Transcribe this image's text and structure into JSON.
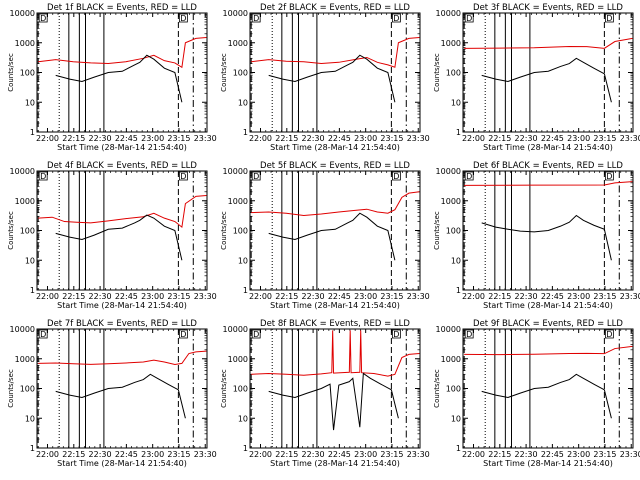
{
  "colors": {
    "events": "#000000",
    "lld": "#e00000",
    "background": "#ffffff"
  },
  "chart_data": {
    "type": "line",
    "ylabel": "Counts/sec",
    "xlabel": "Start Time (28-Mar-14 21:54:40)",
    "yscale": "log",
    "ylim": [
      1,
      10000
    ],
    "xlim_minutes": [
      -0.67,
      96.33
    ],
    "x_ticks": [
      "22:00",
      "22:15",
      "22:30",
      "22:45",
      "23:00",
      "23:15",
      "23:30"
    ],
    "y_ticks": [
      "1",
      "10",
      "100",
      "1000",
      "10000"
    ],
    "marker_label": "D",
    "legend": {
      "events": "BLACK = Events",
      "lld": "RED = LLD"
    },
    "vlines": {
      "dashed": [
        0,
        80
      ],
      "dash_dot": [
        88.5
      ],
      "dotted": [
        12
      ],
      "solid": [
        17.5,
        23.5,
        27,
        37.5
      ]
    },
    "panels": [
      {
        "title": "Det 1f BLACK = Events, RED = LLD",
        "lld": [
          [
            0,
            230
          ],
          [
            10,
            270
          ],
          [
            20,
            230
          ],
          [
            30,
            210
          ],
          [
            40,
            200
          ],
          [
            50,
            230
          ],
          [
            60,
            300
          ],
          [
            66,
            380
          ],
          [
            72,
            250
          ],
          [
            78,
            210
          ],
          [
            82,
            150
          ],
          [
            84,
            1000
          ],
          [
            90,
            1400
          ],
          [
            96,
            1500
          ]
        ],
        "events": [
          [
            10,
            80
          ],
          [
            18,
            60
          ],
          [
            25,
            50
          ],
          [
            32,
            70
          ],
          [
            40,
            100
          ],
          [
            48,
            110
          ],
          [
            55,
            180
          ],
          [
            58,
            220
          ],
          [
            62,
            380
          ],
          [
            66,
            280
          ],
          [
            72,
            140
          ],
          [
            78,
            100
          ],
          [
            82,
            10
          ]
        ]
      },
      {
        "title": "Det 2f BLACK = Events, RED = LLD",
        "lld": [
          [
            0,
            230
          ],
          [
            10,
            270
          ],
          [
            20,
            240
          ],
          [
            30,
            230
          ],
          [
            40,
            200
          ],
          [
            50,
            220
          ],
          [
            60,
            280
          ],
          [
            66,
            320
          ],
          [
            72,
            220
          ],
          [
            78,
            180
          ],
          [
            82,
            150
          ],
          [
            84,
            1000
          ],
          [
            90,
            1400
          ],
          [
            96,
            1500
          ]
        ],
        "events": [
          [
            10,
            80
          ],
          [
            18,
            60
          ],
          [
            25,
            50
          ],
          [
            32,
            70
          ],
          [
            40,
            100
          ],
          [
            48,
            110
          ],
          [
            55,
            180
          ],
          [
            58,
            220
          ],
          [
            62,
            380
          ],
          [
            66,
            280
          ],
          [
            72,
            140
          ],
          [
            78,
            100
          ],
          [
            82,
            10
          ]
        ]
      },
      {
        "title": "Det 3f BLACK = Events, RED = LLD",
        "lld": [
          [
            0,
            650
          ],
          [
            20,
            660
          ],
          [
            40,
            680
          ],
          [
            60,
            750
          ],
          [
            70,
            740
          ],
          [
            80,
            650
          ],
          [
            86,
            1100
          ],
          [
            96,
            1400
          ]
        ],
        "events": [
          [
            10,
            80
          ],
          [
            18,
            60
          ],
          [
            25,
            50
          ],
          [
            32,
            70
          ],
          [
            40,
            100
          ],
          [
            48,
            110
          ],
          [
            55,
            160
          ],
          [
            60,
            200
          ],
          [
            64,
            300
          ],
          [
            68,
            220
          ],
          [
            74,
            140
          ],
          [
            80,
            90
          ],
          [
            84,
            10
          ]
        ]
      },
      {
        "title": "Det 4f BLACK = Events, RED = LLD",
        "lld": [
          [
            0,
            260
          ],
          [
            8,
            280
          ],
          [
            15,
            200
          ],
          [
            22,
            190
          ],
          [
            30,
            180
          ],
          [
            40,
            210
          ],
          [
            50,
            250
          ],
          [
            60,
            290
          ],
          [
            66,
            380
          ],
          [
            72,
            260
          ],
          [
            78,
            200
          ],
          [
            82,
            130
          ],
          [
            84,
            800
          ],
          [
            90,
            1400
          ],
          [
            96,
            1500
          ]
        ],
        "events": [
          [
            10,
            80
          ],
          [
            18,
            60
          ],
          [
            25,
            50
          ],
          [
            32,
            70
          ],
          [
            40,
            110
          ],
          [
            48,
            120
          ],
          [
            55,
            180
          ],
          [
            58,
            220
          ],
          [
            62,
            330
          ],
          [
            66,
            260
          ],
          [
            72,
            140
          ],
          [
            78,
            100
          ],
          [
            82,
            10
          ]
        ]
      },
      {
        "title": "Det 5f BLACK = Events, RED = LLD",
        "lld": [
          [
            0,
            400
          ],
          [
            10,
            420
          ],
          [
            20,
            380
          ],
          [
            30,
            320
          ],
          [
            40,
            360
          ],
          [
            50,
            420
          ],
          [
            60,
            480
          ],
          [
            66,
            520
          ],
          [
            72,
            420
          ],
          [
            78,
            380
          ],
          [
            82,
            500
          ],
          [
            86,
            1300
          ],
          [
            90,
            1800
          ],
          [
            96,
            2000
          ]
        ],
        "events": [
          [
            10,
            80
          ],
          [
            18,
            60
          ],
          [
            25,
            50
          ],
          [
            32,
            70
          ],
          [
            40,
            100
          ],
          [
            48,
            110
          ],
          [
            55,
            180
          ],
          [
            58,
            220
          ],
          [
            62,
            380
          ],
          [
            66,
            280
          ],
          [
            72,
            140
          ],
          [
            78,
            100
          ],
          [
            82,
            10
          ]
        ]
      },
      {
        "title": "Det 6f BLACK = Events, RED = LLD",
        "lld": [
          [
            0,
            3300
          ],
          [
            40,
            3350
          ],
          [
            80,
            3400
          ],
          [
            86,
            4000
          ],
          [
            96,
            4400
          ]
        ],
        "events": [
          [
            10,
            180
          ],
          [
            18,
            130
          ],
          [
            25,
            110
          ],
          [
            32,
            95
          ],
          [
            40,
            90
          ],
          [
            48,
            100
          ],
          [
            55,
            140
          ],
          [
            60,
            190
          ],
          [
            64,
            320
          ],
          [
            68,
            220
          ],
          [
            74,
            150
          ],
          [
            80,
            110
          ],
          [
            84,
            10
          ]
        ]
      },
      {
        "title": "Det 7f BLACK = Events, RED = LLD",
        "lld": [
          [
            0,
            700
          ],
          [
            10,
            720
          ],
          [
            20,
            680
          ],
          [
            30,
            650
          ],
          [
            40,
            680
          ],
          [
            50,
            720
          ],
          [
            60,
            780
          ],
          [
            66,
            900
          ],
          [
            72,
            780
          ],
          [
            78,
            640
          ],
          [
            82,
            700
          ],
          [
            86,
            1500
          ],
          [
            90,
            1700
          ],
          [
            96,
            1800
          ]
        ],
        "events": [
          [
            10,
            80
          ],
          [
            18,
            60
          ],
          [
            25,
            50
          ],
          [
            32,
            70
          ],
          [
            40,
            100
          ],
          [
            48,
            110
          ],
          [
            55,
            160
          ],
          [
            60,
            200
          ],
          [
            64,
            300
          ],
          [
            68,
            220
          ],
          [
            74,
            140
          ],
          [
            80,
            90
          ],
          [
            84,
            10
          ]
        ]
      },
      {
        "title": "Det 8f BLACK = Events, RED = LLD",
        "lld": [
          [
            0,
            300
          ],
          [
            10,
            320
          ],
          [
            20,
            300
          ],
          [
            30,
            280
          ],
          [
            40,
            310
          ],
          [
            46,
            340
          ],
          [
            46.5,
            9000
          ],
          [
            47,
            330
          ],
          [
            56,
            350
          ],
          [
            56.5,
            9000
          ],
          [
            57,
            340
          ],
          [
            62,
            350
          ],
          [
            62.5,
            9000
          ],
          [
            63,
            340
          ],
          [
            70,
            320
          ],
          [
            78,
            260
          ],
          [
            82,
            300
          ],
          [
            86,
            1100
          ],
          [
            90,
            1400
          ],
          [
            96,
            1500
          ]
        ],
        "events": [
          [
            10,
            80
          ],
          [
            18,
            60
          ],
          [
            25,
            50
          ],
          [
            32,
            70
          ],
          [
            40,
            100
          ],
          [
            45,
            140
          ],
          [
            47,
            4
          ],
          [
            50,
            130
          ],
          [
            56,
            170
          ],
          [
            58,
            220
          ],
          [
            62,
            5
          ],
          [
            64,
            320
          ],
          [
            68,
            220
          ],
          [
            74,
            140
          ],
          [
            80,
            90
          ],
          [
            84,
            10
          ]
        ]
      },
      {
        "title": "Det 9f BLACK = Events, RED = LLD",
        "lld": [
          [
            0,
            1400
          ],
          [
            20,
            1380
          ],
          [
            40,
            1420
          ],
          [
            60,
            1500
          ],
          [
            70,
            1520
          ],
          [
            80,
            1480
          ],
          [
            86,
            2200
          ],
          [
            96,
            2600
          ]
        ],
        "events": [
          [
            10,
            80
          ],
          [
            18,
            60
          ],
          [
            25,
            50
          ],
          [
            32,
            70
          ],
          [
            40,
            100
          ],
          [
            48,
            110
          ],
          [
            55,
            160
          ],
          [
            60,
            200
          ],
          [
            64,
            300
          ],
          [
            68,
            220
          ],
          [
            74,
            140
          ],
          [
            80,
            90
          ],
          [
            84,
            10
          ]
        ]
      }
    ]
  }
}
